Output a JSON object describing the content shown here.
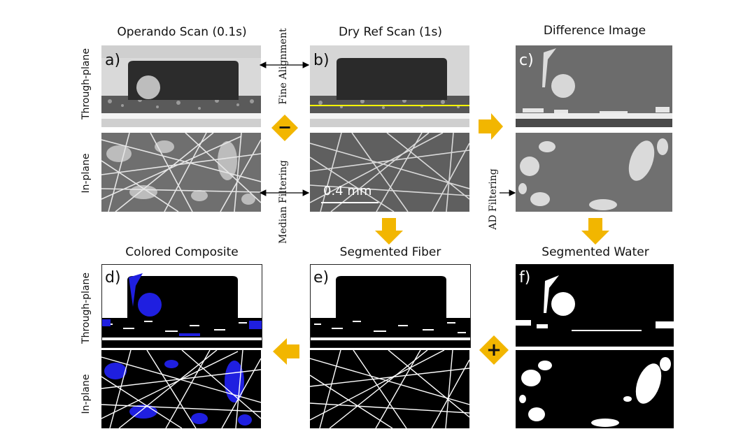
{
  "columns": {
    "operando": "Operando Scan (0.1s)",
    "dryref": "Dry Ref Scan (1s)",
    "difference": "Difference Image",
    "composite": "Colored  Composite",
    "fiber": "Segmented Fiber",
    "water": "Segmented Water"
  },
  "row_labels": {
    "through": "Through-plane",
    "inplane": "In-plane"
  },
  "panel_labels": {
    "a": "a)",
    "b": "b)",
    "c": "c)",
    "d": "d)",
    "e": "e)",
    "f": "f)"
  },
  "steps": {
    "fine_alignment": "Fine Alignment",
    "median_filtering": "Median Filtering",
    "ad_filtering": "AD Filtering"
  },
  "operators": {
    "minus": "−",
    "plus": "+"
  },
  "scale_bar": "0.4 mm",
  "colors": {
    "arrow": "#f2b600",
    "water_blue": "#1f1fe0",
    "scale_line": "#ffff00"
  },
  "icons": {
    "flow_arrow": "thick-yellow-arrow",
    "double_arrow": "double-headed-arrow"
  }
}
